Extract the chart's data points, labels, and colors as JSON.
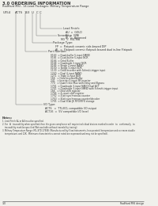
{
  "title": "3.0 ORDERING INFORMATION",
  "subtitle": "RadHard MSI - 14-Lead Packages: Military Temperature Range",
  "bg_color": "#f0f0eb",
  "text_color": "#333333",
  "line_color": "#666666",
  "part_prefix": "UT54",
  "segments": [
    "ACTS",
    "163",
    "U",
    "C",
    "C"
  ],
  "lead_finish_label": "Lead Finish:",
  "lead_finish_items": [
    "AU  =  GOLD",
    "NI  =  NINI",
    "AL  =  Approved"
  ],
  "screening_label": "Screening:",
  "screening_items": [
    "M3  =  MIL Std"
  ],
  "package_label": "Package Type:",
  "package_items": [
    "FP  =  Flatpack ceramic side-brazed DIP",
    "AL  =  Flatpack ceramic flatpack brazed dual in-line Flatpack"
  ],
  "part_number_label": "Part Number:",
  "part_number_items": [
    "0163  = Quad-buffer 5-input NAND",
    "0165  = Quad-buffer 5-input NOR",
    "0166  = Octal Buffer",
    "0168  = Quadruple 2-input NOR",
    "0169  = Single 2-input NAND",
    "01X0  = Single 3-input NOR",
    "1130  = Octal Inverter with Schmitt-trigger input",
    "1240  = Dual 4-input NAND",
    "1271  = Triple 4-input NOR",
    "166   = Octal Inverter/Buffer",
    "241   = Inverter 5-input SR Inverter",
    "770   = Quad 5-line Mux with Delay and Bypass",
    "1701  = Quadruple 3-input NAND Dual ACT",
    "17X1  = Quadruple 3-input NAND with Schmitt-trigger input",
    "166   = Octal shift register",
    "1766  = 4-count shift-register",
    "17X2  = 4-bit synchronous counter",
    "17X3  = 8-bit synchronous counter/decoder",
    "17X5  = Dual 8-bit JK FIFO/FIFO storage"
  ],
  "io_label": "I/O Type:",
  "io_items": [
    "ACTS   =  TTL/ECL compatible I/O output",
    "ACT16  =  5V compatible I/O level"
  ],
  "notes_title": "Notes:",
  "notes": [
    "1. Lead Finish AL or AU must be specified.",
    "2. For   A   traceability when specified, then the given compliance will require individual devices marked in order   to   conformally   to",
    "    traceability mark be specified (Not available without traceability tracing).",
    "3. Military Temperature Range: MIL-STD-1750B: (Manufactured) by Flow Instruments, Incorporated (temperature and are more sizable",
    "    temperature, and 12K.  Minimum characteristics cannot noted are expressed and may not be specified)."
  ],
  "footer_left": "3-0",
  "footer_right": "RadHard MSI design"
}
